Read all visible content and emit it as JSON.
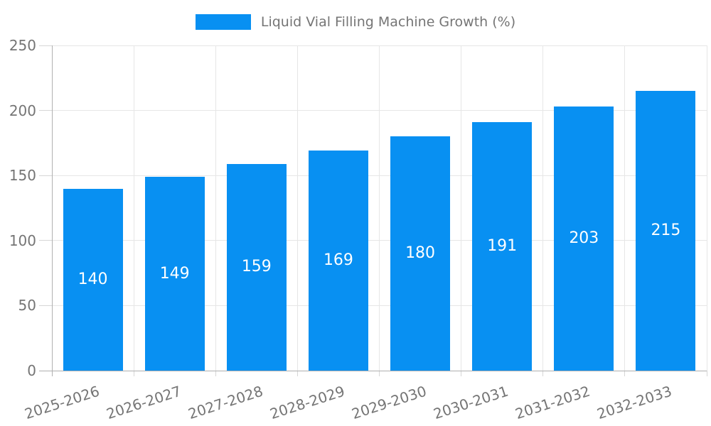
{
  "chart_data": {
    "type": "bar",
    "title": "Liquid Vial Filling Machine Growth (%)",
    "categories": [
      "2025-2026",
      "2026-2027",
      "2027-2028",
      "2028-2029",
      "2029-2030",
      "2030-2031",
      "2031-2032",
      "2032-2033"
    ],
    "series": [
      {
        "name": "Liquid Vial Filling Machine Growth (%)",
        "values": [
          140,
          149,
          159,
          169,
          180,
          191,
          203,
          215
        ]
      }
    ],
    "xlabel": "",
    "ylabel": "",
    "ylim": [
      0,
      250
    ],
    "y_ticks": [
      0,
      50,
      100,
      150,
      200,
      250
    ],
    "grid": true,
    "legend_position": "top",
    "colors": {
      "bar": "#0890f2",
      "axis_line": "#b0b0b0",
      "gridline": "#e6e6e6",
      "tick": "#d6d6d6",
      "axis_text": "#757575",
      "value_text": "#ffffff"
    }
  }
}
